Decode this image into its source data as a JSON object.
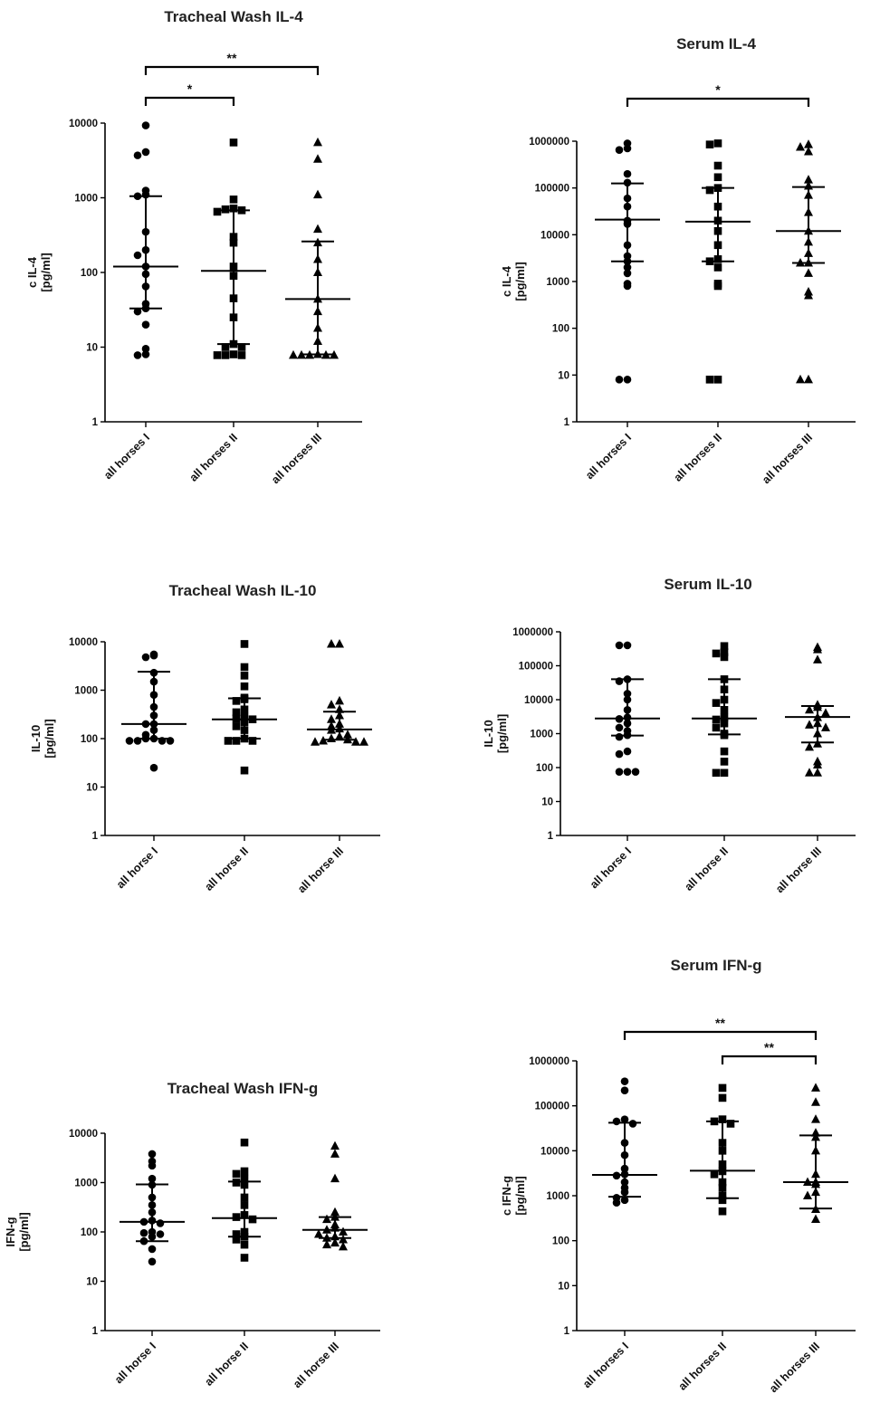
{
  "colors": {
    "ink": "#000000",
    "title": "#222222"
  },
  "chart_data": [
    {
      "type": "scatter",
      "title": "Tracheal Wash IL-4",
      "ylabel": [
        "c IL-4",
        "[pg/ml]"
      ],
      "yscale": "log",
      "ylim": [
        1,
        10000
      ],
      "yticks": [
        "1",
        "10",
        "100",
        "1000",
        "10000"
      ],
      "categories": [
        "all horses I",
        "all horses II",
        "all horses III"
      ],
      "markers": [
        "circle",
        "square",
        "triangle"
      ],
      "median": [
        120,
        105,
        44
      ],
      "iqr": [
        [
          33,
          1050
        ],
        [
          11,
          680
        ],
        [
          8,
          260
        ]
      ],
      "points": [
        [
          9300,
          4100,
          3700,
          1250,
          1100,
          1050,
          350,
          200,
          170,
          120,
          95,
          65,
          38,
          33,
          30,
          20,
          9.5,
          8,
          7.8
        ],
        [
          5500,
          950,
          720,
          700,
          680,
          650,
          300,
          250,
          120,
          90,
          45,
          25,
          11,
          10,
          10,
          8,
          7.8,
          7.8,
          7.8
        ],
        [
          5500,
          3300,
          1100,
          380,
          250,
          150,
          100,
          44,
          30,
          18,
          12,
          8,
          7.8,
          7.8,
          7.8,
          7.8,
          7.8
        ]
      ],
      "significance": [
        {
          "from": 0,
          "to": 2,
          "label": "**"
        },
        {
          "from": 0,
          "to": 1,
          "label": "*"
        }
      ]
    },
    {
      "type": "scatter",
      "title": "Serum IL-4",
      "ylabel": [
        "c IL-4",
        "[pg/ml]"
      ],
      "yscale": "log",
      "ylim": [
        1,
        1000000
      ],
      "yticks": [
        "1",
        "10",
        "100",
        "1000",
        "10000",
        "100000",
        "1000000"
      ],
      "categories": [
        "all horses I",
        "all horses II",
        "all horses III"
      ],
      "markers": [
        "circle",
        "square",
        "triangle"
      ],
      "median": [
        21000,
        19000,
        12000
      ],
      "iqr": [
        [
          2700,
          125000
        ],
        [
          2700,
          100000
        ],
        [
          2500,
          105000
        ]
      ],
      "points": [
        [
          900000,
          700000,
          650000,
          200000,
          130000,
          60000,
          40000,
          20000,
          17000,
          6000,
          3500,
          2700,
          2000,
          1500,
          900,
          800,
          8,
          8
        ],
        [
          900000,
          850000,
          300000,
          170000,
          100000,
          90000,
          40000,
          20000,
          12000,
          6000,
          3000,
          2700,
          2000,
          900,
          800,
          8,
          8
        ],
        [
          850000,
          750000,
          600000,
          150000,
          110000,
          70000,
          30000,
          12000,
          7000,
          4000,
          2500,
          2500,
          1500,
          600,
          500,
          8,
          8
        ]
      ],
      "significance": [
        {
          "from": 0,
          "to": 2,
          "label": "*"
        }
      ]
    },
    {
      "type": "scatter",
      "title": "Tracheal Wash IL-10",
      "ylabel": [
        "IL-10",
        "[pg/ml]"
      ],
      "yscale": "log",
      "ylim": [
        1,
        10000
      ],
      "yticks": [
        "1",
        "10",
        "100",
        "1000",
        "10000"
      ],
      "categories": [
        "all horse I",
        "all horse II",
        "all horse III"
      ],
      "markers": [
        "circle",
        "square",
        "triangle"
      ],
      "median": [
        200,
        250,
        155
      ],
      "iqr": [
        [
          100,
          2400
        ],
        [
          100,
          680
        ],
        [
          95,
          360
        ]
      ],
      "points": [
        [
          5500,
          5200,
          4800,
          2300,
          1500,
          800,
          450,
          300,
          200,
          200,
          150,
          120,
          100,
          100,
          90,
          90,
          90,
          90,
          25
        ],
        [
          9000,
          3000,
          2000,
          1200,
          700,
          650,
          600,
          400,
          350,
          280,
          260,
          250,
          220,
          180,
          150,
          100,
          90,
          90,
          90,
          22
        ],
        [
          9000,
          9000,
          600,
          500,
          400,
          300,
          250,
          200,
          180,
          160,
          150,
          120,
          110,
          100,
          95,
          90,
          85,
          85,
          85
        ]
      ],
      "significance": []
    },
    {
      "type": "scatter",
      "title": "Serum IL-10",
      "ylabel": [
        "IL-10",
        "[pg/ml]"
      ],
      "yscale": "log",
      "ylim": [
        1,
        1000000
      ],
      "yticks": [
        "1",
        "10",
        "100",
        "1000",
        "10000",
        "100000",
        "1000000"
      ],
      "categories": [
        "all horse I",
        "all horse II",
        "all horse III"
      ],
      "markers": [
        "circle",
        "square",
        "triangle"
      ],
      "median": [
        2800,
        2800,
        3100
      ],
      "iqr": [
        [
          880,
          40000
        ],
        [
          950,
          40000
        ],
        [
          550,
          6500
        ]
      ],
      "points": [
        [
          400000,
          400000,
          40000,
          35000,
          15000,
          10000,
          5000,
          3000,
          2700,
          2000,
          1500,
          1200,
          900,
          800,
          300,
          250,
          75,
          75,
          75
        ],
        [
          380000,
          250000,
          230000,
          180000,
          40000,
          20000,
          10000,
          8000,
          5000,
          3000,
          2600,
          2000,
          1500,
          1000,
          900,
          300,
          150,
          70,
          70
        ],
        [
          350000,
          300000,
          150000,
          7000,
          6000,
          5000,
          4000,
          3000,
          2000,
          1800,
          1500,
          1000,
          500,
          400,
          150,
          120,
          70,
          70
        ]
      ],
      "significance": []
    },
    {
      "type": "scatter",
      "title": "Tracheal Wash IFN-g",
      "ylabel": [
        "IFN-g",
        "[pg/ml]"
      ],
      "yscale": "log",
      "ylim": [
        1,
        10000
      ],
      "yticks": [
        "1",
        "10",
        "100",
        "1000",
        "10000"
      ],
      "categories": [
        "all horse I",
        "all horse II",
        "all horse III"
      ],
      "markers": [
        "circle",
        "square",
        "triangle"
      ],
      "median": [
        160,
        190,
        110
      ],
      "iqr": [
        [
          65,
          920
        ],
        [
          80,
          1050
        ],
        [
          75,
          200
        ]
      ],
      "points": [
        [
          3800,
          2700,
          2200,
          1200,
          900,
          500,
          350,
          250,
          170,
          160,
          150,
          100,
          95,
          90,
          80,
          65,
          45,
          25
        ],
        [
          6500,
          1700,
          1500,
          1200,
          1000,
          900,
          500,
          350,
          220,
          200,
          180,
          100,
          90,
          80,
          70,
          55,
          30
        ],
        [
          5500,
          3800,
          1200,
          250,
          200,
          180,
          140,
          120,
          110,
          100,
          90,
          80,
          75,
          70,
          60,
          55,
          50
        ]
      ],
      "significance": []
    },
    {
      "type": "scatter",
      "title": "Serum IFN-g",
      "ylabel": [
        "c IFN-g",
        "[pg/ml]"
      ],
      "yscale": "log",
      "ylim": [
        1,
        1000000
      ],
      "yticks": [
        "1",
        "10",
        "100",
        "1000",
        "10000",
        "100000",
        "1000000"
      ],
      "categories": [
        "all horses I",
        "all horses II",
        "all horses III"
      ],
      "markers": [
        "circle",
        "square",
        "triangle"
      ],
      "median": [
        2900,
        3600,
        2000
      ],
      "iqr": [
        [
          950,
          42000
        ],
        [
          880,
          45000
        ],
        [
          520,
          22000
        ]
      ],
      "points": [
        [
          350000,
          220000,
          50000,
          45000,
          40000,
          15000,
          8000,
          4000,
          3000,
          2800,
          2000,
          1500,
          1200,
          900,
          800,
          700
        ],
        [
          250000,
          150000,
          50000,
          45000,
          40000,
          15000,
          10000,
          5000,
          3500,
          3000,
          2000,
          1500,
          1000,
          800,
          450
        ],
        [
          250000,
          120000,
          50000,
          25000,
          20000,
          10000,
          3000,
          2000,
          2000,
          1800,
          1200,
          1000,
          500,
          300
        ]
      ],
      "significance": [
        {
          "from": 0,
          "to": 2,
          "label": "**"
        },
        {
          "from": 1,
          "to": 2,
          "label": "**"
        }
      ]
    }
  ]
}
